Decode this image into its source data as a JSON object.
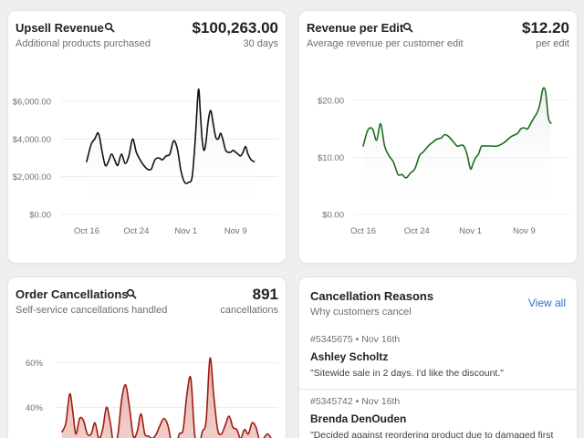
{
  "cards": {
    "upsell": {
      "title": "Upsell Revenue",
      "subtitle": "Additional products purchased",
      "value": "$100,263.00",
      "unit": "30 days"
    },
    "revenue_per_edit": {
      "title": "Revenue per Edit",
      "subtitle": "Average revenue per customer edit",
      "value": "$12.20",
      "unit": "per edit"
    },
    "cancellations": {
      "title": "Order Cancellations",
      "subtitle": "Self-service cancellations handled",
      "value": "891",
      "unit": "cancellations"
    }
  },
  "reasons": {
    "title": "Cancellation Reasons",
    "subtitle": "Why customers cancel",
    "view_all": "View all",
    "items": [
      {
        "meta": "#5345675 • Nov 16th",
        "name": "Ashley Scholtz",
        "quote": "\"Sitewide sale in 2 days. I'd like the discount.\""
      },
      {
        "meta": "#5345742 • Nov 16th",
        "name": "Brenda DenOuden",
        "quote": "\"Decided against reordering product due to damaged first"
      }
    ]
  },
  "chart_data": [
    {
      "id": "upsell",
      "type": "line",
      "color": "#111111",
      "x_ticks": [
        "Oct 16",
        "Oct 24",
        "Nov 1",
        "Nov 9"
      ],
      "x_tick_days": [
        0,
        8,
        16,
        24
      ],
      "y_ticks": [
        "$0.00",
        "$2,000.00",
        "$4,000.00",
        "$6,000.00"
      ],
      "y_tick_values": [
        0,
        2000,
        4000,
        6000
      ],
      "ylim": [
        0,
        6000
      ],
      "days": [
        0,
        0.7,
        1.3,
        1.9,
        2.5,
        3,
        3.5,
        4,
        4.5,
        5,
        5.6,
        6.2,
        6.8,
        7.4,
        8,
        8.6,
        9.2,
        9.8,
        10.4,
        11,
        11.6,
        12.2,
        12.8,
        13.4,
        14,
        14.6,
        15.2,
        15.8,
        16.4,
        17,
        17.5,
        18,
        18.3,
        18.6,
        18.9,
        19.2,
        19.6,
        20,
        20.4,
        20.8,
        21.2,
        21.6,
        22,
        22.4,
        22.8,
        23.2,
        23.6,
        24,
        24.4,
        24.8,
        25.2,
        25.6,
        26,
        26.5,
        27
      ],
      "values": [
        2800,
        3700,
        4000,
        4300,
        3300,
        2600,
        2800,
        3200,
        2900,
        2600,
        3200,
        2700,
        3100,
        4000,
        3300,
        2900,
        2600,
        2400,
        2400,
        2900,
        3000,
        2900,
        3100,
        3200,
        3900,
        3500,
        2300,
        1700,
        1700,
        2000,
        4000,
        6600,
        5500,
        4000,
        3400,
        3800,
        5000,
        5500,
        4800,
        4100,
        4000,
        4300,
        3900,
        3400,
        3300,
        3300,
        3400,
        3300,
        3200,
        3100,
        3300,
        3600,
        3200,
        2900,
        2800
      ]
    },
    {
      "id": "revenue_per_edit",
      "type": "line",
      "color": "#1b6e1b",
      "x_ticks": [
        "Oct 16",
        "Oct 24",
        "Nov 1",
        "Nov 9"
      ],
      "x_tick_days": [
        0,
        8,
        16,
        24
      ],
      "y_ticks": [
        "$0.00",
        "$10.00",
        "$20.00"
      ],
      "y_tick_values": [
        0,
        10,
        20
      ],
      "ylim": [
        0,
        20
      ],
      "days": [
        0,
        0.7,
        1.4,
        2,
        2.6,
        3.2,
        3.8,
        4.5,
        5.2,
        5.8,
        6.4,
        7,
        7.7,
        8.4,
        9,
        9.7,
        10.3,
        11,
        11.6,
        12.2,
        12.8,
        13.4,
        14,
        14.5,
        15,
        15.5,
        16,
        16.4,
        16.8,
        17.2,
        17.6,
        18,
        18.5,
        19,
        20,
        21,
        22,
        23,
        23.5,
        24,
        24.5,
        25,
        25.5,
        26,
        26.4,
        26.8,
        27.2,
        27.6,
        28
      ],
      "values": [
        12,
        14.8,
        15,
        13,
        15.9,
        12,
        10.4,
        9.2,
        7,
        7,
        6.4,
        7.2,
        8,
        10.3,
        11,
        12,
        12.6,
        13.2,
        13.4,
        14,
        13.6,
        12.8,
        12,
        12.1,
        12,
        10.5,
        8,
        9,
        10,
        10.6,
        11.9,
        12,
        12,
        12,
        12,
        12.6,
        13.6,
        14.2,
        15,
        15.2,
        15,
        16,
        17,
        18,
        19.6,
        22,
        21.5,
        17,
        16
      ]
    },
    {
      "id": "cancellations",
      "type": "area",
      "color": "#9e1c12",
      "fill": "#e8b2ad",
      "y_ticks": [
        "40%",
        "60%"
      ],
      "y_tick_values": [
        40,
        60
      ],
      "ylim": [
        18,
        68
      ],
      "days": [
        0,
        0.5,
        1,
        1.4,
        1.8,
        2.3,
        2.8,
        3.3,
        3.8,
        4.3,
        4.8,
        5.3,
        5.8,
        6.3,
        6.8,
        7.3,
        7.8,
        8.3,
        8.8,
        9.3,
        9.8,
        10.3,
        10.8,
        11.3,
        11.8,
        12.3,
        12.8,
        13.3,
        13.8,
        14.3,
        14.8,
        15.3,
        15.8,
        16.3,
        16.8,
        17.3,
        17.8,
        18.3,
        18.8,
        19.3,
        19.8,
        20.3,
        20.8,
        21.3,
        21.8,
        22.3,
        22.8,
        23.3,
        23.8,
        24.3,
        24.8,
        25.3,
        25.8,
        26.3,
        26.8,
        27.3
      ],
      "values": [
        29,
        33,
        46,
        38,
        28,
        35,
        34,
        28,
        28,
        33,
        26,
        30,
        40,
        33,
        22,
        28,
        44,
        50,
        40,
        27,
        29,
        37,
        28,
        27,
        26,
        28,
        32,
        35,
        32,
        24,
        22,
        28,
        30,
        46,
        53,
        28,
        22,
        29,
        34,
        62,
        45,
        30,
        28,
        32,
        36,
        31,
        30,
        26,
        30,
        28,
        33,
        31,
        25,
        26,
        28,
        26
      ]
    }
  ]
}
